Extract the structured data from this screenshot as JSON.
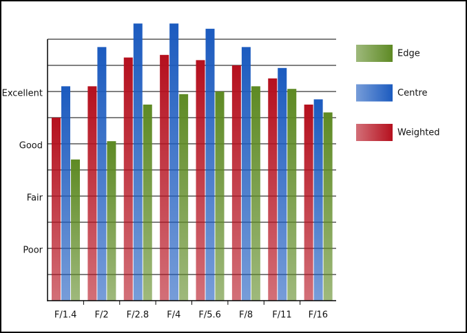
{
  "chart_data": {
    "type": "bar",
    "categories": [
      "F/1.4",
      "F/2",
      "F/2.8",
      "F/4",
      "F/5.6",
      "F/8",
      "F/11",
      "F/16"
    ],
    "series": [
      {
        "name": "Weighted",
        "color": "#b5101e",
        "values": [
          3.5,
          4.1,
          4.65,
          4.7,
          4.6,
          4.5,
          4.25,
          3.75
        ]
      },
      {
        "name": "Centre",
        "color": "#1c5bbf",
        "values": [
          4.1,
          4.85,
          5.3,
          5.3,
          5.2,
          4.85,
          4.45,
          3.85
        ]
      },
      {
        "name": "Edge",
        "color": "#5e8a24",
        "values": [
          2.7,
          3.05,
          3.75,
          3.95,
          4.0,
          4.1,
          4.05,
          3.6
        ]
      }
    ],
    "ylim": [
      0,
      5
    ],
    "yticks": [
      {
        "value": 1,
        "label": "Poor"
      },
      {
        "value": 2,
        "label": "Fair"
      },
      {
        "value": 3,
        "label": "Good"
      },
      {
        "value": 4,
        "label": "Excellent"
      }
    ],
    "y_minor_ticks": [
      0.5,
      1.5,
      2.5,
      3.5,
      4.5,
      5
    ],
    "grid": true
  }
}
